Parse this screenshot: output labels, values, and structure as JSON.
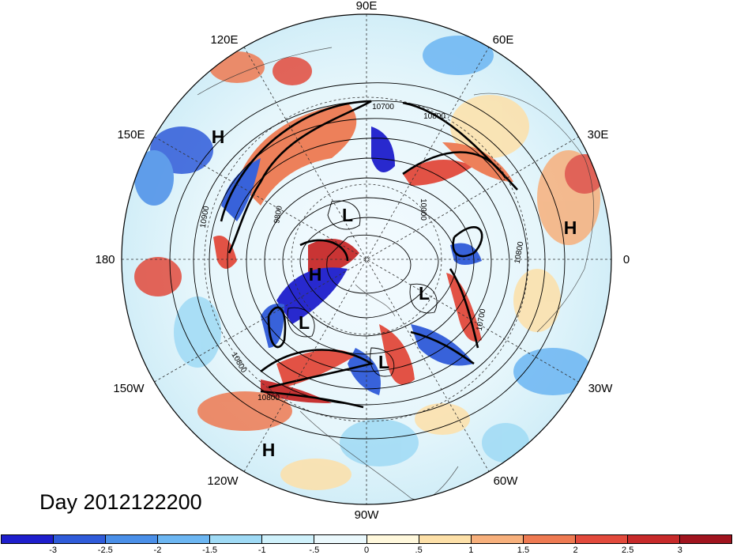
{
  "title": "Day 2012122200",
  "longitude_labels": [
    {
      "text": "90E",
      "angle": 90
    },
    {
      "text": "60E",
      "angle": 60
    },
    {
      "text": "30E",
      "angle": 30
    },
    {
      "text": "0",
      "angle": 0
    },
    {
      "text": "30W",
      "angle": -30
    },
    {
      "text": "60W",
      "angle": -60
    },
    {
      "text": "90W",
      "angle": -90
    },
    {
      "text": "120W",
      "angle": -120
    },
    {
      "text": "150W",
      "angle": -150
    },
    {
      "text": "180",
      "angle": 180
    },
    {
      "text": "150E",
      "angle": 150
    },
    {
      "text": "120E",
      "angle": 120
    }
  ],
  "pressure_centers": [
    {
      "text": "H",
      "id": "h-150e"
    },
    {
      "text": "L",
      "id": "l-north-asia"
    },
    {
      "text": "H",
      "id": "h-east-atlantic"
    },
    {
      "text": "H",
      "id": "h-dateline"
    },
    {
      "text": "L",
      "id": "l-north-atlantic"
    },
    {
      "text": "L",
      "id": "l-north-pacific"
    },
    {
      "text": "L",
      "id": "l-hudson"
    },
    {
      "text": "H",
      "id": "h-east-pacific"
    }
  ],
  "contour_labels": [
    "10700",
    "10800",
    "10000",
    "9800",
    "10900",
    "10800",
    "10700",
    "10800",
    "10800"
  ],
  "colorbar": {
    "labels": [
      "-3",
      "-2.5",
      "-2",
      "-1.5",
      "-1",
      "-.5",
      "0",
      ".5",
      "1",
      "1.5",
      "2",
      "2.5",
      "3"
    ],
    "colors": [
      "#1e1ecc",
      "#2f5bd9",
      "#4a8fe8",
      "#6cb6f2",
      "#9fdaf5",
      "#cff1fb",
      "#eaf8fc",
      "#fff8dc",
      "#fde0a8",
      "#f7b07c",
      "#ee7a52",
      "#e24a3c",
      "#c72a2a",
      "#a0141e"
    ]
  }
}
